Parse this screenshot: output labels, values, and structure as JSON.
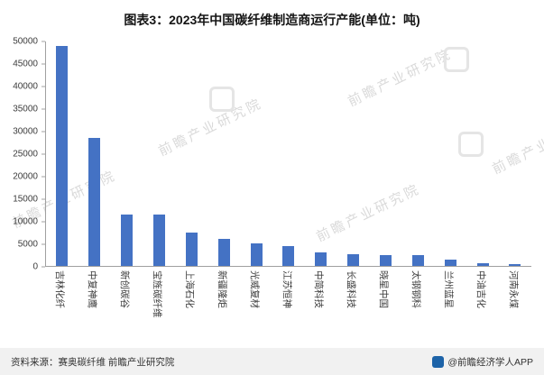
{
  "title": "图表3：2023年中国碳纤维制造商运行产能(单位：吨)",
  "chart_data": {
    "type": "bar",
    "title": "图表3：2023年中国碳纤维制造商运行产能(单位：吨)",
    "categories": [
      "吉林化纤",
      "中复神鹰",
      "新创碳谷",
      "宝旌碳纤维",
      "上海石化",
      "新疆隆炬",
      "光威复材",
      "江苏恒神",
      "中简科技",
      "长盛科技",
      "晓星中国",
      "太钢钢科",
      "兰州蓝星",
      "中油吉化",
      "河南永煤"
    ],
    "values": [
      49000,
      28500,
      11500,
      11500,
      7500,
      6000,
      5000,
      4500,
      3000,
      2600,
      2500,
      2400,
      1500,
      700,
      400
    ],
    "xlabel": "",
    "ylabel": "",
    "ylim": [
      0,
      50000
    ],
    "ytick_step": 5000,
    "grid": false,
    "legend": "none",
    "bar_color": "#4472C4"
  },
  "watermark": {
    "text": "前瞻产业研究院"
  },
  "footer": {
    "source": "资料来源：赛奥碳纤维 前瞻产业研究院",
    "credit": "@前瞻经济学人APP"
  }
}
